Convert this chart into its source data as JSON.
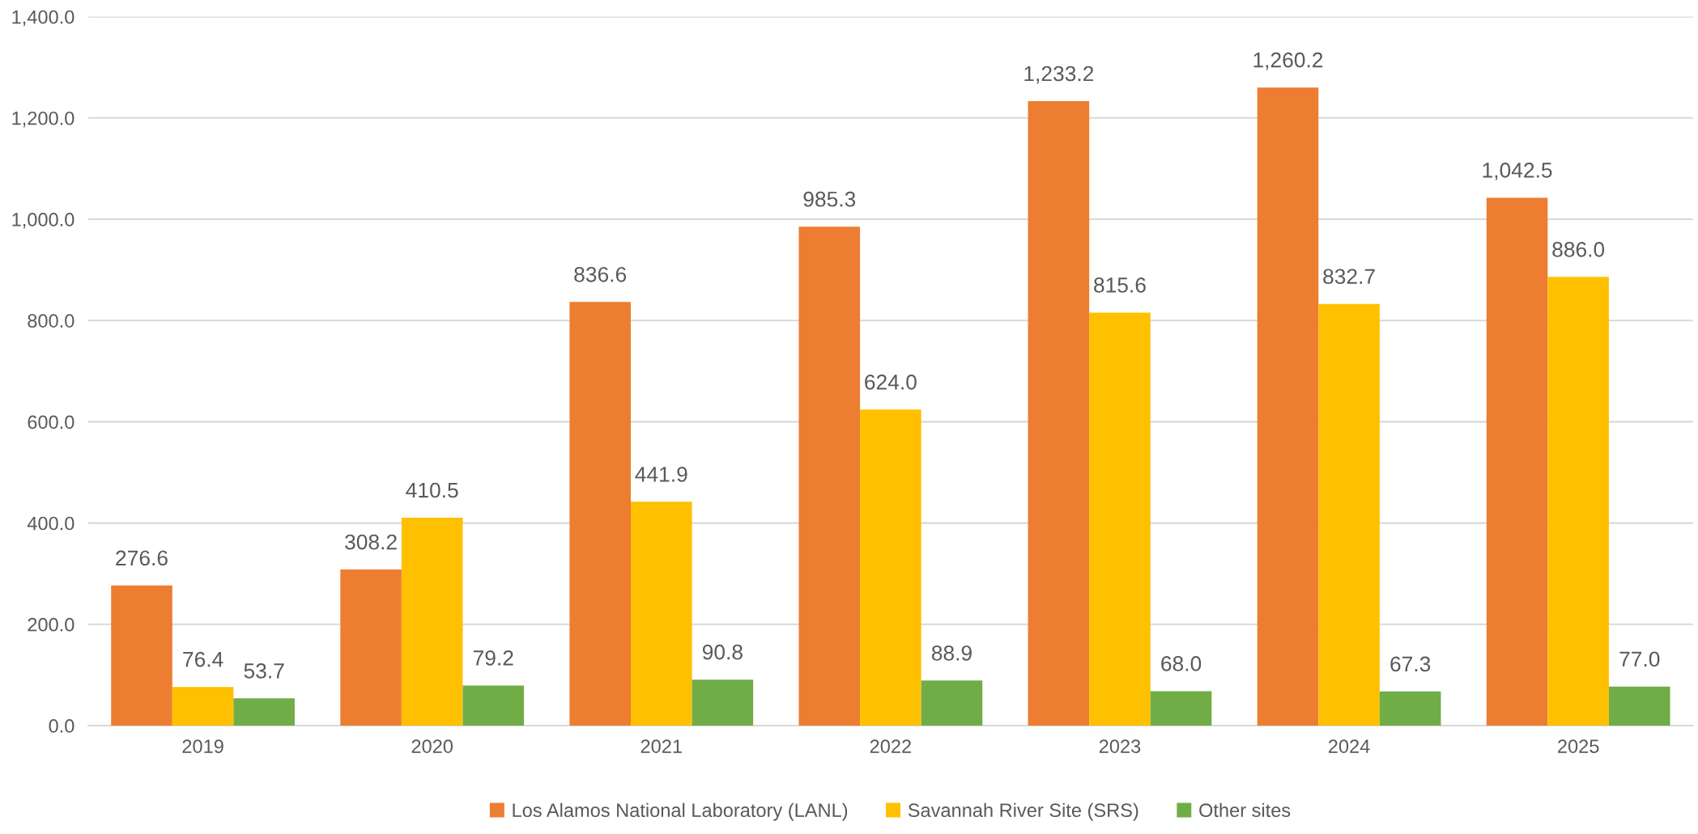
{
  "chart_data": {
    "type": "bar",
    "categories": [
      "2019",
      "2020",
      "2021",
      "2022",
      "2023",
      "2024",
      "2025"
    ],
    "series": [
      {
        "name": "Los Alamos National Laboratory (LANL)",
        "color": "#ed7d31",
        "values": [
          276.6,
          308.2,
          836.6,
          985.3,
          1233.2,
          1260.2,
          1042.5
        ],
        "value_labels": [
          "276.6",
          "308.2",
          "836.6",
          "985.3",
          "1,233.2",
          "1,260.2",
          "1,042.5"
        ]
      },
      {
        "name": "Savannah River Site (SRS)",
        "color": "#ffc000",
        "values": [
          76.4,
          410.5,
          441.9,
          624.0,
          815.6,
          832.7,
          886.0
        ],
        "value_labels": [
          "76.4",
          "410.5",
          "441.9",
          "624.0",
          "815.6",
          "832.7",
          "886.0"
        ]
      },
      {
        "name": "Other sites",
        "color": "#70ad47",
        "values": [
          53.7,
          79.2,
          90.8,
          88.9,
          68.0,
          67.3,
          77.0
        ],
        "value_labels": [
          "53.7",
          "79.2",
          "90.8",
          "88.9",
          "68.0",
          "67.3",
          "77.0"
        ]
      }
    ],
    "ylim": [
      0,
      1400
    ],
    "yticks": [
      {
        "value": 0,
        "label": "0.0"
      },
      {
        "value": 200,
        "label": "200.0"
      },
      {
        "value": 400,
        "label": "400.0"
      },
      {
        "value": 600,
        "label": "600.0"
      },
      {
        "value": 800,
        "label": "800.0"
      },
      {
        "value": 1000,
        "label": "1,000.0"
      },
      {
        "value": 1200,
        "label": "1,200.0"
      },
      {
        "value": 1400,
        "label": "1,400.0"
      }
    ],
    "grid": "y",
    "legend": "bottom"
  }
}
